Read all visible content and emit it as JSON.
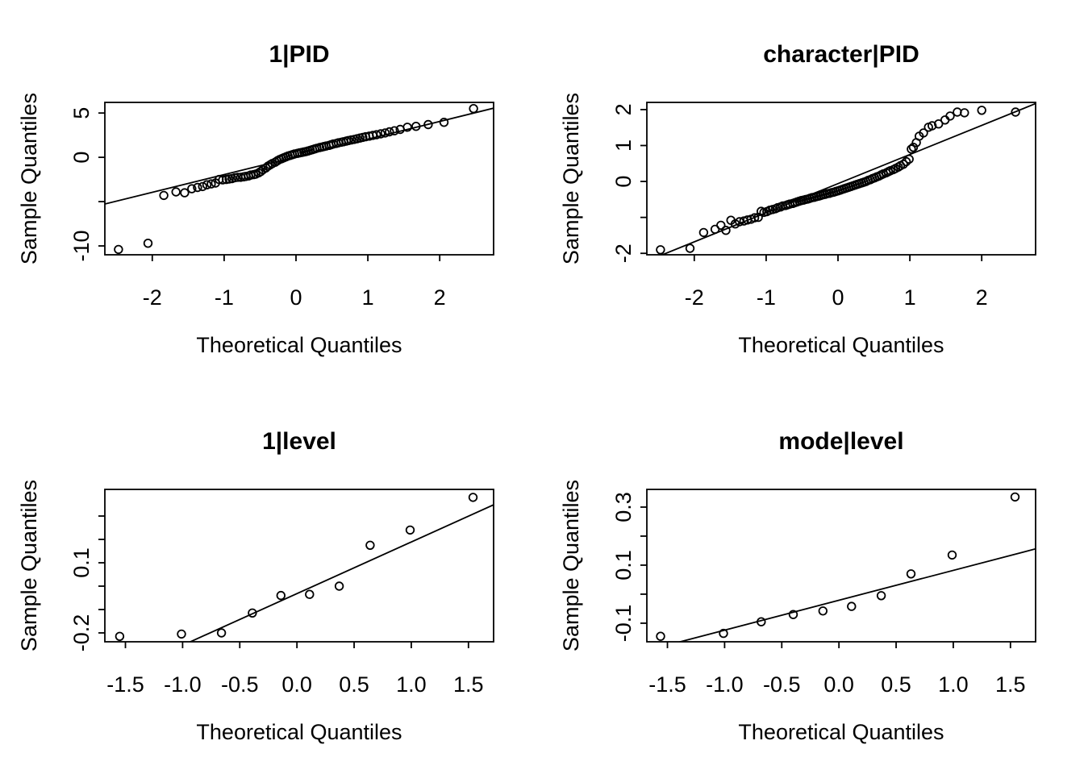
{
  "figure": {
    "background_color": "#ffffff",
    "foreground_color": "#000000",
    "rows": 2,
    "cols": 2
  },
  "chart_data": [
    {
      "type": "scatter",
      "kind": "normal-qq-plot",
      "position": "top-left",
      "title": "1|PID",
      "xlabel": "Theoretical Quantiles",
      "ylabel": "Sample Quantiles",
      "xlim": [
        -2.66,
        2.75
      ],
      "ylim": [
        -11.0,
        6.2
      ],
      "grid": false,
      "legend": null,
      "xticks": [
        {
          "v": -2,
          "label": "-2"
        },
        {
          "v": -1,
          "label": "-1"
        },
        {
          "v": 0,
          "label": "0"
        },
        {
          "v": 1,
          "label": "1"
        },
        {
          "v": 2,
          "label": "2"
        }
      ],
      "yticks": [
        {
          "v": 5,
          "label": "5"
        },
        {
          "v": 0,
          "label": "0"
        },
        {
          "v": -5,
          "label": ""
        },
        {
          "v": -10,
          "label": "-10"
        }
      ],
      "ref_line": {
        "slope": 2.0,
        "intercept": 0.05
      },
      "points": [
        [
          -2.47,
          -10.4
        ],
        [
          -2.06,
          -9.7
        ],
        [
          -1.84,
          -4.3
        ],
        [
          -1.67,
          -3.9
        ],
        [
          -1.55,
          -4.0
        ],
        [
          -1.45,
          -3.55
        ],
        [
          -1.37,
          -3.4
        ],
        [
          -1.3,
          -3.3
        ],
        [
          -1.24,
          -3.1
        ],
        [
          -1.18,
          -3.0
        ],
        [
          -1.12,
          -2.9
        ],
        [
          -1.07,
          -2.5
        ],
        [
          -1.02,
          -2.55
        ],
        [
          -0.97,
          -2.5
        ],
        [
          -0.93,
          -2.45
        ],
        [
          -0.89,
          -2.4
        ],
        [
          -0.85,
          -2.3
        ],
        [
          -0.81,
          -2.25
        ],
        [
          -0.77,
          -2.25
        ],
        [
          -0.73,
          -2.2
        ],
        [
          -0.7,
          -2.15
        ],
        [
          -0.66,
          -2.1
        ],
        [
          -0.63,
          -2.0
        ],
        [
          -0.59,
          -1.95
        ],
        [
          -0.56,
          -1.9
        ],
        [
          -0.52,
          -1.75
        ],
        [
          -0.49,
          -1.6
        ],
        [
          -0.46,
          -1.4
        ],
        [
          -0.42,
          -1.2
        ],
        [
          -0.39,
          -1.0
        ],
        [
          -0.36,
          -0.85
        ],
        [
          -0.33,
          -0.7
        ],
        [
          -0.29,
          -0.55
        ],
        [
          -0.26,
          -0.4
        ],
        [
          -0.23,
          -0.25
        ],
        [
          -0.2,
          -0.15
        ],
        [
          -0.17,
          -0.05
        ],
        [
          -0.14,
          0.05
        ],
        [
          -0.11,
          0.15
        ],
        [
          -0.08,
          0.22
        ],
        [
          -0.05,
          0.3
        ],
        [
          -0.02,
          0.38
        ],
        [
          0.02,
          0.45
        ],
        [
          0.05,
          0.5
        ],
        [
          0.08,
          0.55
        ],
        [
          0.11,
          0.6
        ],
        [
          0.14,
          0.65
        ],
        [
          0.17,
          0.72
        ],
        [
          0.2,
          0.8
        ],
        [
          0.23,
          0.87
        ],
        [
          0.26,
          0.95
        ],
        [
          0.29,
          1.02
        ],
        [
          0.33,
          1.1
        ],
        [
          0.36,
          1.16
        ],
        [
          0.39,
          1.22
        ],
        [
          0.42,
          1.28
        ],
        [
          0.46,
          1.35
        ],
        [
          0.49,
          1.42
        ],
        [
          0.52,
          1.5
        ],
        [
          0.56,
          1.57
        ],
        [
          0.59,
          1.64
        ],
        [
          0.63,
          1.7
        ],
        [
          0.66,
          1.76
        ],
        [
          0.7,
          1.83
        ],
        [
          0.73,
          1.9
        ],
        [
          0.77,
          1.96
        ],
        [
          0.81,
          2.02
        ],
        [
          0.85,
          2.1
        ],
        [
          0.89,
          2.18
        ],
        [
          0.93,
          2.25
        ],
        [
          0.97,
          2.32
        ],
        [
          1.02,
          2.4
        ],
        [
          1.07,
          2.48
        ],
        [
          1.12,
          2.55
        ],
        [
          1.18,
          2.65
        ],
        [
          1.24,
          2.75
        ],
        [
          1.3,
          2.88
        ],
        [
          1.37,
          3.0
        ],
        [
          1.45,
          3.15
        ],
        [
          1.55,
          3.4
        ],
        [
          1.67,
          3.5
        ],
        [
          1.84,
          3.7
        ],
        [
          2.06,
          3.95
        ],
        [
          2.47,
          5.5
        ]
      ]
    },
    {
      "type": "scatter",
      "kind": "normal-qq-plot",
      "position": "top-right",
      "title": "character|PID",
      "xlabel": "Theoretical Quantiles",
      "ylabel": "Sample Quantiles",
      "xlim": [
        -2.66,
        2.75
      ],
      "ylim": [
        -2.04,
        2.2
      ],
      "grid": false,
      "legend": null,
      "xticks": [
        {
          "v": -2,
          "label": "-2"
        },
        {
          "v": -1,
          "label": "-1"
        },
        {
          "v": 0,
          "label": "0"
        },
        {
          "v": 1,
          "label": "1"
        },
        {
          "v": 2,
          "label": "2"
        }
      ],
      "yticks": [
        {
          "v": 2,
          "label": "2"
        },
        {
          "v": 1,
          "label": "1"
        },
        {
          "v": 0,
          "label": "0"
        },
        {
          "v": -1,
          "label": ""
        },
        {
          "v": -2,
          "label": "-2"
        }
      ],
      "ref_line": {
        "slope": 0.81,
        "intercept": -0.06
      },
      "points": [
        [
          -2.47,
          -1.9
        ],
        [
          -2.06,
          -1.86
        ],
        [
          -1.87,
          -1.42
        ],
        [
          -1.71,
          -1.33
        ],
        [
          -1.63,
          -1.22
        ],
        [
          -1.56,
          -1.36
        ],
        [
          -1.49,
          -1.08
        ],
        [
          -1.43,
          -1.18
        ],
        [
          -1.37,
          -1.12
        ],
        [
          -1.31,
          -1.1
        ],
        [
          -1.26,
          -1.07
        ],
        [
          -1.21,
          -1.05
        ],
        [
          -1.16,
          -1.01
        ],
        [
          -1.11,
          -1.0
        ],
        [
          -1.07,
          -0.83
        ],
        [
          -1.03,
          -0.86
        ],
        [
          -0.99,
          -0.84
        ],
        [
          -0.95,
          -0.8
        ],
        [
          -0.91,
          -0.78
        ],
        [
          -0.87,
          -0.76
        ],
        [
          -0.84,
          -0.73
        ],
        [
          -0.8,
          -0.71
        ],
        [
          -0.77,
          -0.68
        ],
        [
          -0.73,
          -0.67
        ],
        [
          -0.7,
          -0.65
        ],
        [
          -0.67,
          -0.63
        ],
        [
          -0.63,
          -0.61
        ],
        [
          -0.6,
          -0.59
        ],
        [
          -0.57,
          -0.57
        ],
        [
          -0.54,
          -0.55
        ],
        [
          -0.51,
          -0.53
        ],
        [
          -0.48,
          -0.52
        ],
        [
          -0.45,
          -0.5
        ],
        [
          -0.42,
          -0.49
        ],
        [
          -0.39,
          -0.47
        ],
        [
          -0.36,
          -0.45
        ],
        [
          -0.33,
          -0.44
        ],
        [
          -0.3,
          -0.42
        ],
        [
          -0.27,
          -0.41
        ],
        [
          -0.24,
          -0.39
        ],
        [
          -0.21,
          -0.37
        ],
        [
          -0.18,
          -0.36
        ],
        [
          -0.15,
          -0.34
        ],
        [
          -0.12,
          -0.33
        ],
        [
          -0.09,
          -0.31
        ],
        [
          -0.06,
          -0.3
        ],
        [
          -0.03,
          -0.28
        ],
        [
          0,
          -0.26
        ],
        [
          0.03,
          -0.24
        ],
        [
          0.06,
          -0.22
        ],
        [
          0.09,
          -0.2
        ],
        [
          0.12,
          -0.18
        ],
        [
          0.15,
          -0.16
        ],
        [
          0.18,
          -0.14
        ],
        [
          0.21,
          -0.12
        ],
        [
          0.24,
          -0.1
        ],
        [
          0.27,
          -0.08
        ],
        [
          0.3,
          -0.06
        ],
        [
          0.33,
          -0.04
        ],
        [
          0.36,
          -0.02
        ],
        [
          0.39,
          0
        ],
        [
          0.42,
          0.03
        ],
        [
          0.45,
          0.05
        ],
        [
          0.48,
          0.08
        ],
        [
          0.51,
          0.1
        ],
        [
          0.54,
          0.13
        ],
        [
          0.57,
          0.15
        ],
        [
          0.6,
          0.18
        ],
        [
          0.63,
          0.21
        ],
        [
          0.67,
          0.24
        ],
        [
          0.7,
          0.27
        ],
        [
          0.73,
          0.3
        ],
        [
          0.77,
          0.33
        ],
        [
          0.8,
          0.36
        ],
        [
          0.84,
          0.4
        ],
        [
          0.87,
          0.44
        ],
        [
          0.91,
          0.48
        ],
        [
          0.95,
          0.55
        ],
        [
          0.99,
          0.62
        ],
        [
          1.02,
          0.9
        ],
        [
          1.05,
          0.95
        ],
        [
          1.09,
          1.08
        ],
        [
          1.13,
          1.26
        ],
        [
          1.19,
          1.35
        ],
        [
          1.26,
          1.51
        ],
        [
          1.31,
          1.55
        ],
        [
          1.4,
          1.6
        ],
        [
          1.49,
          1.71
        ],
        [
          1.56,
          1.82
        ],
        [
          1.66,
          1.93
        ],
        [
          1.76,
          1.91
        ],
        [
          2.0,
          1.98
        ],
        [
          2.47,
          1.93
        ]
      ]
    },
    {
      "type": "scatter",
      "kind": "normal-qq-plot",
      "position": "bottom-left",
      "title": "1|level",
      "xlabel": "Theoretical Quantiles",
      "ylabel": "Sample Quantiles",
      "xlim": [
        -1.68,
        1.72
      ],
      "ylim": [
        -0.238,
        0.414
      ],
      "grid": false,
      "legend": null,
      "xticks": [
        {
          "v": -1.5,
          "label": "-1.5"
        },
        {
          "v": -1.0,
          "label": "-1.0"
        },
        {
          "v": -0.5,
          "label": "-0.5"
        },
        {
          "v": 0.0,
          "label": "0.0"
        },
        {
          "v": 0.5,
          "label": "0.5"
        },
        {
          "v": 1.0,
          "label": "1.0"
        },
        {
          "v": 1.5,
          "label": "1.5"
        }
      ],
      "yticks": [
        {
          "v": 0.3,
          "label": ""
        },
        {
          "v": 0.2,
          "label": ""
        },
        {
          "v": 0.1,
          "label": "0.1"
        },
        {
          "v": 0.0,
          "label": ""
        },
        {
          "v": -0.1,
          "label": ""
        },
        {
          "v": -0.2,
          "label": "-0.2"
        }
      ],
      "ref_line": {
        "slope": 0.221,
        "intercept": -0.032
      },
      "points": [
        [
          -1.55,
          -0.215
        ],
        [
          -1.01,
          -0.205
        ],
        [
          -0.66,
          -0.2
        ],
        [
          -0.39,
          -0.115
        ],
        [
          -0.14,
          -0.04
        ],
        [
          0.11,
          -0.035
        ],
        [
          0.37,
          0.0
        ],
        [
          0.64,
          0.175
        ],
        [
          0.99,
          0.24
        ],
        [
          1.54,
          0.38
        ]
      ]
    },
    {
      "type": "scatter",
      "kind": "normal-qq-plot",
      "position": "bottom-right",
      "title": "mode|level",
      "xlabel": "Theoretical Quantiles",
      "ylabel": "Sample Quantiles",
      "xlim": [
        -1.68,
        1.72
      ],
      "ylim": [
        -0.164,
        0.361
      ],
      "grid": false,
      "legend": null,
      "xticks": [
        {
          "v": -1.5,
          "label": "-1.5"
        },
        {
          "v": -1.0,
          "label": "-1.0"
        },
        {
          "v": -0.5,
          "label": "-0.5"
        },
        {
          "v": 0.0,
          "label": "0.0"
        },
        {
          "v": 0.5,
          "label": "0.5"
        },
        {
          "v": 1.0,
          "label": "1.0"
        },
        {
          "v": 1.5,
          "label": "1.5"
        }
      ],
      "yticks": [
        {
          "v": 0.3,
          "label": "0.3"
        },
        {
          "v": 0.2,
          "label": ""
        },
        {
          "v": 0.1,
          "label": "0.1"
        },
        {
          "v": 0.0,
          "label": ""
        },
        {
          "v": -0.1,
          "label": "-0.1"
        }
      ],
      "ref_line": {
        "slope": 0.103,
        "intercept": -0.021
      },
      "points": [
        [
          -1.56,
          -0.145
        ],
        [
          -1.01,
          -0.135
        ],
        [
          -0.68,
          -0.095
        ],
        [
          -0.4,
          -0.07
        ],
        [
          -0.14,
          -0.058
        ],
        [
          0.11,
          -0.042
        ],
        [
          0.37,
          -0.005
        ],
        [
          0.63,
          0.07
        ],
        [
          0.99,
          0.135
        ],
        [
          1.54,
          0.335
        ]
      ]
    }
  ]
}
